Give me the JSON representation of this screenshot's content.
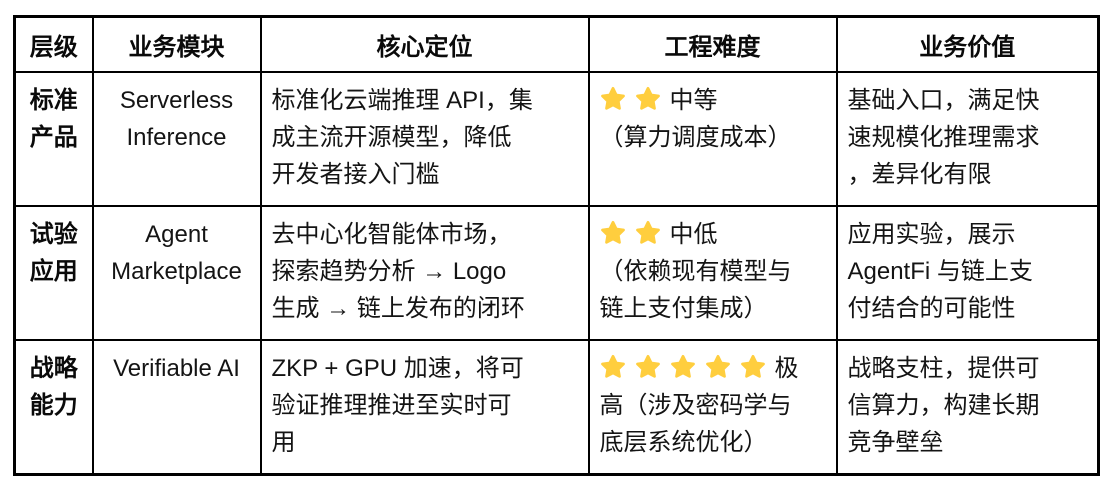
{
  "table": {
    "headers": [
      "层级",
      "业务模块",
      "核心定位",
      "工程难度",
      "业务价值"
    ],
    "rows": [
      {
        "level": "标准\n产品",
        "module": "Serverless\nInference",
        "positioning": "标准化云端推理 API，集\n成主流开源模型，降低\n开发者接入门槛",
        "difficulty": {
          "stars": 2,
          "text": "中等\n（算力调度成本）"
        },
        "value": "基础入口，满足快\n速规模化推理需求\n，差异化有限"
      },
      {
        "level": "试验\n应用",
        "module": "Agent\nMarketplace",
        "positioning": "去中心化智能体市场，\n探索趋势分析 → Logo\n生成 → 链上发布的闭环",
        "difficulty": {
          "stars": 2,
          "text": "中低\n（依赖现有模型与\n链上支付集成）"
        },
        "value": "应用实验，展示\nAgentFi 与链上支\n付结合的可能性"
      },
      {
        "level": "战略\n能力",
        "module": "Verifiable AI",
        "positioning": "ZKP + GPU 加速，将可\n验证推理推进至实时可\n用",
        "difficulty": {
          "stars": 5,
          "text": "极\n高（涉及密码学与\n底层系统优化）"
        },
        "value": "战略支柱，提供可\n信算力，构建长期\n竞争壁垒"
      }
    ]
  },
  "colors": {
    "star": "#FFCE3E",
    "border": "#000000",
    "text": "#141414",
    "background": "#FFFFFF"
  }
}
